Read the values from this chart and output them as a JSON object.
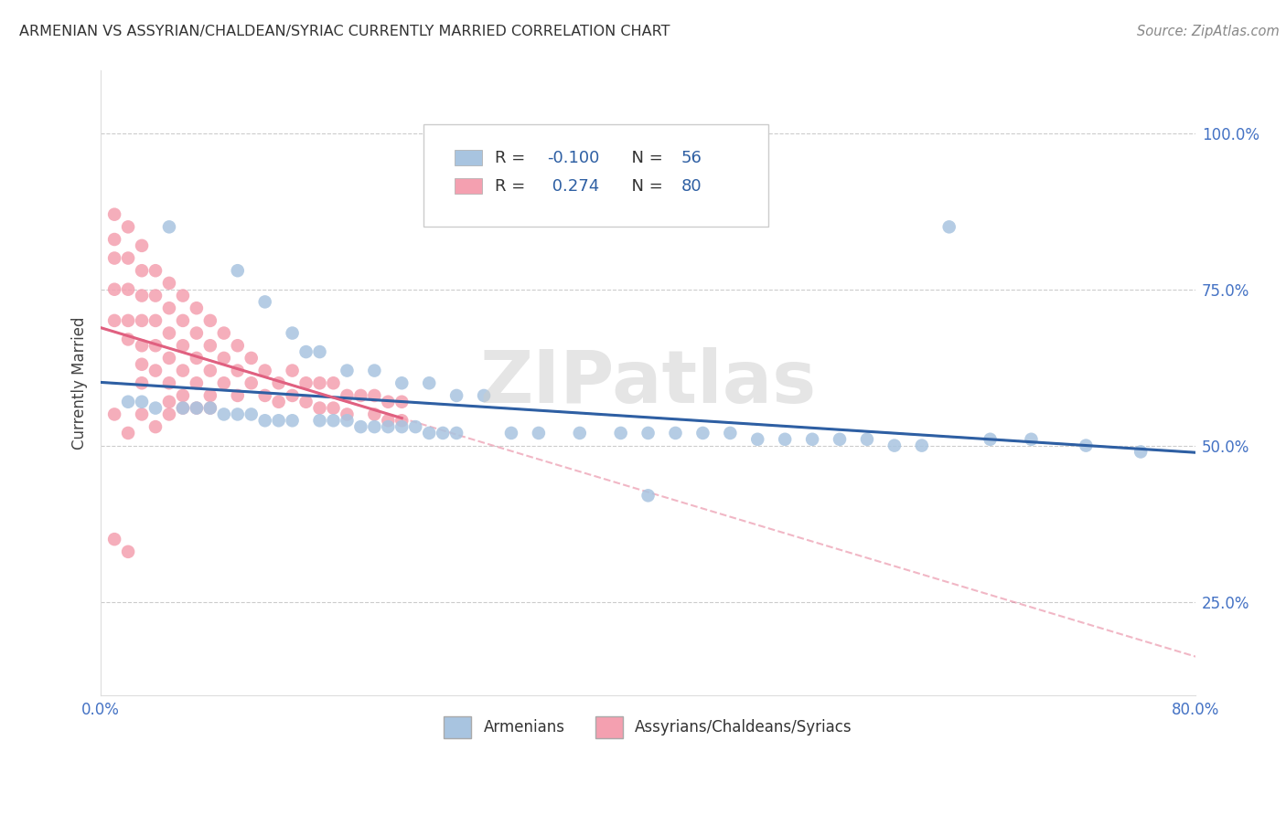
{
  "title": "ARMENIAN VS ASSYRIAN/CHALDEAN/SYRIAC CURRENTLY MARRIED CORRELATION CHART",
  "source": "Source: ZipAtlas.com",
  "ylabel": "Currently Married",
  "xlim": [
    0.0,
    0.8
  ],
  "ylim": [
    0.1,
    1.1
  ],
  "xtick_pos": [
    0.0,
    0.16,
    0.32,
    0.48,
    0.64,
    0.8
  ],
  "xtick_labels": [
    "0.0%",
    "",
    "",
    "",
    "",
    "80.0%"
  ],
  "ytick_positions": [
    0.25,
    0.5,
    0.75,
    1.0
  ],
  "ytick_labels": [
    "25.0%",
    "50.0%",
    "75.0%",
    "100.0%"
  ],
  "armenian_color": "#a8c4e0",
  "assyrian_color": "#f4a0b0",
  "armenian_line_color": "#2E5FA3",
  "assyrian_line_color": "#E06080",
  "armenian_R": -0.1,
  "armenian_N": 56,
  "assyrian_R": 0.274,
  "assyrian_N": 80,
  "legend_label_armenian": "Armenians",
  "legend_label_assyrian": "Assyrians/Chaldeans/Syriacs",
  "watermark": "ZIPatlas",
  "armenian_x": [
    0.05,
    0.1,
    0.12,
    0.14,
    0.15,
    0.16,
    0.18,
    0.2,
    0.22,
    0.24,
    0.26,
    0.28,
    0.02,
    0.03,
    0.04,
    0.06,
    0.07,
    0.08,
    0.09,
    0.1,
    0.11,
    0.12,
    0.13,
    0.14,
    0.16,
    0.17,
    0.18,
    0.19,
    0.2,
    0.21,
    0.22,
    0.23,
    0.24,
    0.25,
    0.26,
    0.3,
    0.32,
    0.35,
    0.38,
    0.4,
    0.42,
    0.44,
    0.46,
    0.48,
    0.5,
    0.52,
    0.54,
    0.56,
    0.58,
    0.6,
    0.62,
    0.65,
    0.68,
    0.72,
    0.76,
    0.4
  ],
  "armenian_y": [
    0.85,
    0.78,
    0.73,
    0.68,
    0.65,
    0.65,
    0.62,
    0.62,
    0.6,
    0.6,
    0.58,
    0.58,
    0.57,
    0.57,
    0.56,
    0.56,
    0.56,
    0.56,
    0.55,
    0.55,
    0.55,
    0.54,
    0.54,
    0.54,
    0.54,
    0.54,
    0.54,
    0.53,
    0.53,
    0.53,
    0.53,
    0.53,
    0.52,
    0.52,
    0.52,
    0.52,
    0.52,
    0.52,
    0.52,
    0.52,
    0.52,
    0.52,
    0.52,
    0.51,
    0.51,
    0.51,
    0.51,
    0.51,
    0.5,
    0.5,
    0.85,
    0.51,
    0.51,
    0.5,
    0.49,
    0.42
  ],
  "assyrian_x": [
    0.01,
    0.01,
    0.01,
    0.01,
    0.01,
    0.02,
    0.02,
    0.02,
    0.02,
    0.02,
    0.03,
    0.03,
    0.03,
    0.03,
    0.03,
    0.03,
    0.03,
    0.04,
    0.04,
    0.04,
    0.04,
    0.04,
    0.05,
    0.05,
    0.05,
    0.05,
    0.05,
    0.05,
    0.06,
    0.06,
    0.06,
    0.06,
    0.06,
    0.07,
    0.07,
    0.07,
    0.07,
    0.08,
    0.08,
    0.08,
    0.08,
    0.09,
    0.09,
    0.09,
    0.1,
    0.1,
    0.1,
    0.11,
    0.11,
    0.12,
    0.12,
    0.13,
    0.13,
    0.14,
    0.14,
    0.15,
    0.15,
    0.16,
    0.16,
    0.17,
    0.17,
    0.18,
    0.18,
    0.19,
    0.2,
    0.2,
    0.21,
    0.21,
    0.22,
    0.22,
    0.01,
    0.02,
    0.03,
    0.04,
    0.05,
    0.06,
    0.07,
    0.08,
    0.01,
    0.02
  ],
  "assyrian_y": [
    0.87,
    0.83,
    0.8,
    0.75,
    0.7,
    0.85,
    0.8,
    0.75,
    0.7,
    0.67,
    0.82,
    0.78,
    0.74,
    0.7,
    0.66,
    0.63,
    0.6,
    0.78,
    0.74,
    0.7,
    0.66,
    0.62,
    0.76,
    0.72,
    0.68,
    0.64,
    0.6,
    0.57,
    0.74,
    0.7,
    0.66,
    0.62,
    0.58,
    0.72,
    0.68,
    0.64,
    0.6,
    0.7,
    0.66,
    0.62,
    0.58,
    0.68,
    0.64,
    0.6,
    0.66,
    0.62,
    0.58,
    0.64,
    0.6,
    0.62,
    0.58,
    0.6,
    0.57,
    0.62,
    0.58,
    0.6,
    0.57,
    0.6,
    0.56,
    0.6,
    0.56,
    0.58,
    0.55,
    0.58,
    0.58,
    0.55,
    0.57,
    0.54,
    0.57,
    0.54,
    0.55,
    0.52,
    0.55,
    0.53,
    0.55,
    0.56,
    0.56,
    0.56,
    0.35,
    0.33
  ]
}
